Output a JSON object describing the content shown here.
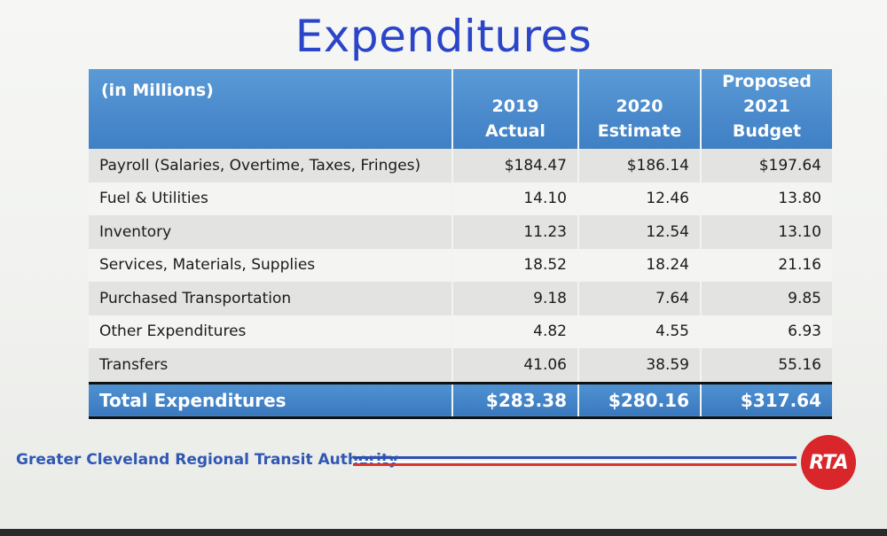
{
  "slide": {
    "title": "Expenditures"
  },
  "table": {
    "header": {
      "label": "(in Millions)",
      "col1": "2019 Actual",
      "col2_line1": "2020",
      "col2_line2": "Estimate",
      "col3_line1": "Proposed",
      "col3_line2": "2021 Budget"
    },
    "rows": [
      {
        "label": "Payroll (Salaries, Overtime, Taxes, Fringes)",
        "actual_2019": "$184.47",
        "estimate_2020": "$186.14",
        "budget_2021": "$197.64"
      },
      {
        "label": "Fuel & Utilities",
        "actual_2019": "14.10",
        "estimate_2020": "12.46",
        "budget_2021": "13.80"
      },
      {
        "label": "Inventory",
        "actual_2019": "11.23",
        "estimate_2020": "12.54",
        "budget_2021": "13.10"
      },
      {
        "label": "Services, Materials, Supplies",
        "actual_2019": "18.52",
        "estimate_2020": "18.24",
        "budget_2021": "21.16"
      },
      {
        "label": "Purchased Transportation",
        "actual_2019": "9.18",
        "estimate_2020": "7.64",
        "budget_2021": "9.85"
      },
      {
        "label": "Other Expenditures",
        "actual_2019": "4.82",
        "estimate_2020": "4.55",
        "budget_2021": "6.93"
      },
      {
        "label": "Transfers",
        "actual_2019": "41.06",
        "estimate_2020": "38.59",
        "budget_2021": "55.16"
      }
    ],
    "total": {
      "label": "Total Expenditures",
      "actual_2019": "$283.38",
      "estimate_2020": "$280.16",
      "budget_2021": "$317.64"
    }
  },
  "footer": {
    "organization": "Greater Cleveland Regional Transit Authority",
    "logo_text": "RTA",
    "logo_color": "#d8262a",
    "stripe_colors": [
      "#2d4fb0",
      "#d9352e"
    ]
  },
  "colors": {
    "title": "#2b45c9",
    "header_fill": "#4a8bcd"
  }
}
